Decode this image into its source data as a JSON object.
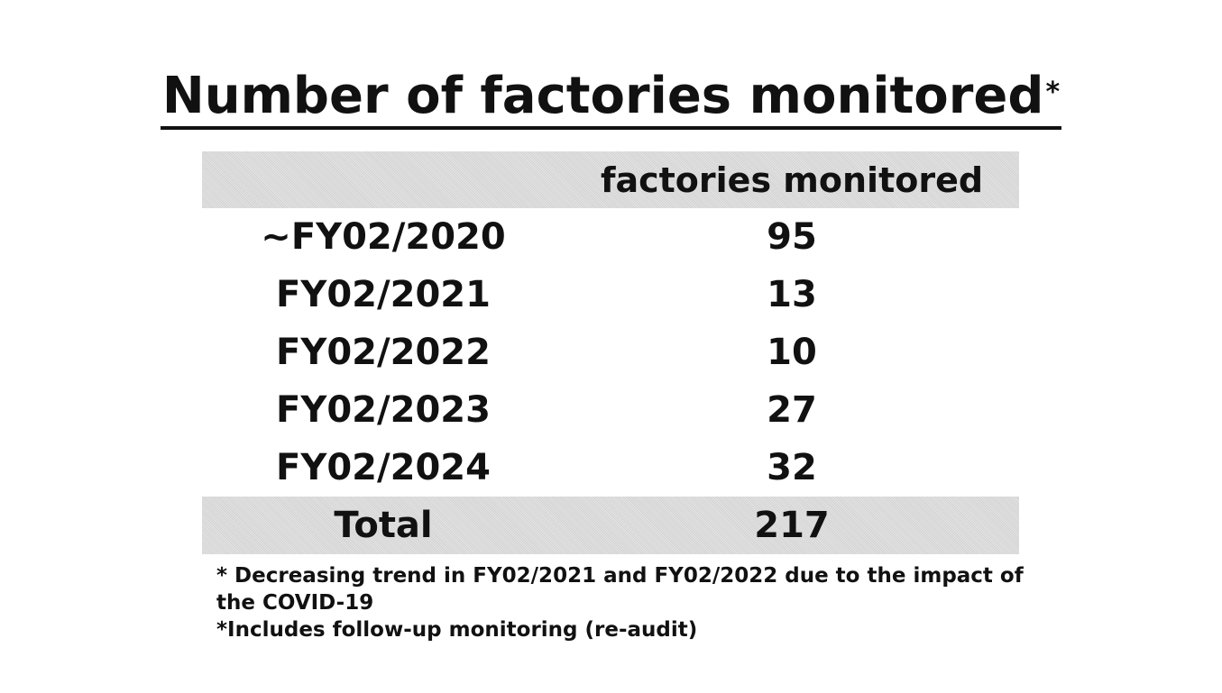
{
  "title": {
    "text": "Number of factories monitored",
    "marker": "*"
  },
  "table": {
    "header": {
      "left": "",
      "right": "factories monitored"
    },
    "rows": [
      {
        "period": "~FY02/2020",
        "value": "95"
      },
      {
        "period": "FY02/2021",
        "value": "13"
      },
      {
        "period": "FY02/2022",
        "value": "10"
      },
      {
        "period": "FY02/2023",
        "value": "27"
      },
      {
        "period": "FY02/2024",
        "value": "32"
      }
    ],
    "total": {
      "label": "Total",
      "value": "217"
    }
  },
  "notes": [
    "* Decreasing trend in FY02/2021 and FY02/2022 due to the impact of",
    "the COVID-19",
    "*Includes follow-up monitoring (re-audit)"
  ],
  "colors": {
    "text": "#111111",
    "shaded_row": "#dcdcdc",
    "background": "#ffffff"
  }
}
